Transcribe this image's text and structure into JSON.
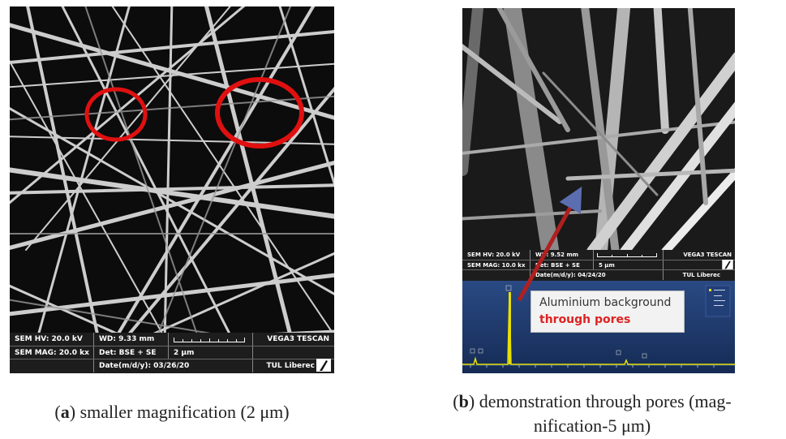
{
  "panel_a": {
    "sem": {
      "hv": "SEM HV: 20.0 kV",
      "wd": "WD: 9.33 mm",
      "brand": "VEGA3 TESCAN",
      "mag": "SEM MAG: 20.0 kx",
      "det": "Det: BSE + SE",
      "scale": "2 μm",
      "date": "Date(m/d/y): 03/26/20",
      "lab": "TUL Liberec"
    },
    "caption": {
      "label": "a",
      "text": ") smaller magnification (2 μm)",
      "open": "("
    }
  },
  "panel_b": {
    "sem": {
      "hv": "SEM HV: 20.0 kV",
      "wd": "WD: 9.52 mm",
      "brand": "VEGA3 TESCAN",
      "mag": "SEM MAG: 10.0 kx",
      "det": "Det: BSE + SE",
      "scale": "5 μm",
      "date": "Date(m/d/y): 04/24/20",
      "lab": "TUL Liberec"
    },
    "eds_box": {
      "line1": "Aluminium background",
      "line2": "through pores"
    },
    "caption": {
      "open": "(",
      "label": "b",
      "text1": ") demonstration through pores (mag-",
      "text2": "nification-5 μm)"
    }
  },
  "colors": {
    "circle": "#e01010",
    "arrow": "#b02020",
    "eds_bg": "#1f3a6e",
    "peak": "#e8e000"
  }
}
